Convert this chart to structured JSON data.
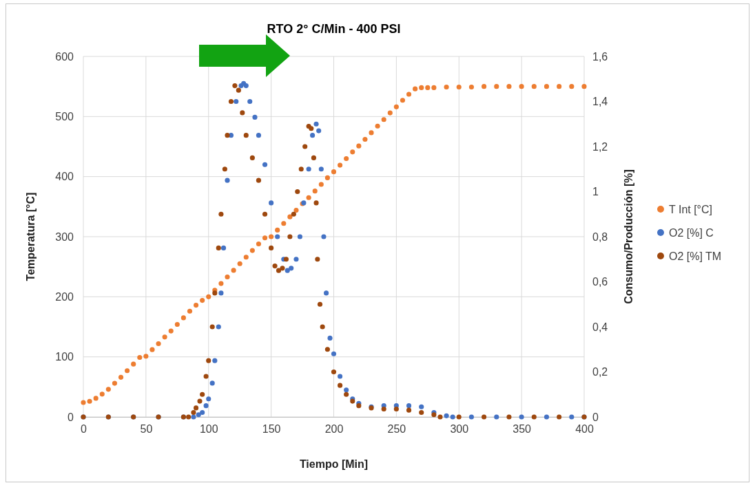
{
  "chart_data": {
    "type": "scatter",
    "title": "RTO 2° C/Min - 400 PSI",
    "xlabel": "Tiempo [Min]",
    "ylabel": "Temperatura [°C]",
    "y2label": "Consumo/Producción [%]",
    "xlim": [
      0,
      400
    ],
    "xticks": [
      0,
      50,
      100,
      150,
      200,
      250,
      300,
      350,
      400
    ],
    "ylim": [
      0,
      600
    ],
    "yticks": [
      0,
      100,
      200,
      300,
      400,
      500,
      600
    ],
    "y2lim": [
      0,
      1.6
    ],
    "y2ticks": [
      0,
      {
        "value": 0.2,
        "label": "0,2"
      },
      {
        "value": 0.4,
        "label": "0,4"
      },
      {
        "value": 0.6,
        "label": "0,6"
      },
      {
        "value": 0.8,
        "label": "0,8"
      },
      1,
      {
        "value": 1.2,
        "label": "1,2"
      },
      {
        "value": 1.4,
        "label": "1,4"
      },
      {
        "value": 1.6,
        "label": "1,6"
      }
    ],
    "grid": true,
    "legend": "right",
    "marker": "circle",
    "series": [
      {
        "name": "T Int [°C]",
        "color": "#ed7d31",
        "x": [
          0,
          5,
          10,
          15,
          20,
          25,
          30,
          35,
          40,
          45,
          50,
          55,
          60,
          65,
          70,
          75,
          80,
          85,
          90,
          95,
          100,
          105,
          110,
          115,
          120,
          125,
          130,
          135,
          140,
          145,
          150,
          155,
          160,
          165,
          170,
          175,
          180,
          185,
          190,
          195,
          200,
          205,
          210,
          215,
          220,
          225,
          230,
          235,
          240,
          245,
          250,
          255,
          260,
          265,
          270,
          275,
          280,
          290,
          300,
          310,
          320,
          330,
          340,
          350,
          360,
          370,
          380,
          390,
          400
        ],
        "values": [
          24,
          26,
          31,
          38,
          46,
          56,
          66,
          77,
          88,
          99,
          101,
          112,
          122,
          133,
          143,
          154,
          165,
          176,
          186,
          194,
          200,
          211,
          222,
          233,
          244,
          255,
          266,
          277,
          288,
          298,
          300,
          311,
          322,
          333,
          344,
          355,
          365,
          376,
          387,
          398,
          408,
          419,
          430,
          441,
          451,
          462,
          473,
          484,
          495,
          506,
          516,
          527,
          537,
          546,
          548,
          548,
          548,
          549,
          549,
          549,
          550,
          550,
          550,
          550,
          550,
          550,
          550,
          550,
          550
        ]
      },
      {
        "name": "O2 [%] C",
        "color": "#4472c4",
        "axis": "y2",
        "x": [
          0,
          20,
          40,
          60,
          80,
          88,
          92,
          95,
          98,
          100,
          103,
          105,
          108,
          110,
          112,
          115,
          118,
          122,
          126,
          128,
          130,
          133,
          137,
          140,
          145,
          150,
          155,
          160,
          163,
          166,
          170,
          173,
          176,
          180,
          183,
          186,
          188,
          190,
          192,
          194,
          197,
          200,
          205,
          210,
          215,
          220,
          230,
          240,
          250,
          260,
          270,
          280,
          290,
          295,
          310,
          330,
          350,
          370,
          390,
          400
        ],
        "values": [
          0,
          0,
          0,
          0,
          0,
          0,
          0.01,
          0.02,
          0.05,
          0.08,
          0.15,
          0.25,
          0.4,
          0.55,
          0.75,
          1.05,
          1.25,
          1.4,
          1.47,
          1.48,
          1.47,
          1.4,
          1.33,
          1.25,
          1.12,
          0.95,
          0.8,
          0.7,
          0.65,
          0.66,
          0.7,
          0.8,
          0.95,
          1.1,
          1.25,
          1.3,
          1.27,
          1.1,
          0.8,
          0.55,
          0.35,
          0.28,
          0.18,
          0.12,
          0.08,
          0.06,
          0.045,
          0.05,
          0.05,
          0.05,
          0.045,
          0.02,
          0.005,
          0,
          0,
          0,
          0,
          0,
          0,
          0
        ]
      },
      {
        "name": "O2 [%] TM",
        "color": "#9e480e",
        "axis": "y2",
        "x": [
          0,
          20,
          40,
          60,
          80,
          84,
          88,
          90,
          93,
          95,
          98,
          100,
          103,
          105,
          108,
          110,
          113,
          115,
          118,
          121,
          124,
          127,
          130,
          135,
          140,
          145,
          150,
          153,
          156,
          159,
          162,
          165,
          168,
          171,
          174,
          177,
          180,
          182,
          184,
          186,
          187,
          189,
          191,
          195,
          200,
          205,
          210,
          215,
          220,
          230,
          240,
          250,
          260,
          270,
          280,
          285,
          300,
          320,
          340,
          360,
          380,
          400
        ],
        "values": [
          0,
          0,
          0,
          0,
          0,
          0,
          0.02,
          0.04,
          0.07,
          0.1,
          0.18,
          0.25,
          0.4,
          0.55,
          0.75,
          0.9,
          1.1,
          1.25,
          1.4,
          1.47,
          1.45,
          1.35,
          1.25,
          1.15,
          1.05,
          0.9,
          0.75,
          0.67,
          0.65,
          0.66,
          0.7,
          0.8,
          0.9,
          1.0,
          1.1,
          1.2,
          1.29,
          1.28,
          1.15,
          0.95,
          0.7,
          0.5,
          0.4,
          0.3,
          0.2,
          0.14,
          0.1,
          0.07,
          0.05,
          0.04,
          0.035,
          0.035,
          0.03,
          0.02,
          0.01,
          0,
          0,
          0,
          0,
          0,
          0,
          0
        ]
      }
    ]
  }
}
